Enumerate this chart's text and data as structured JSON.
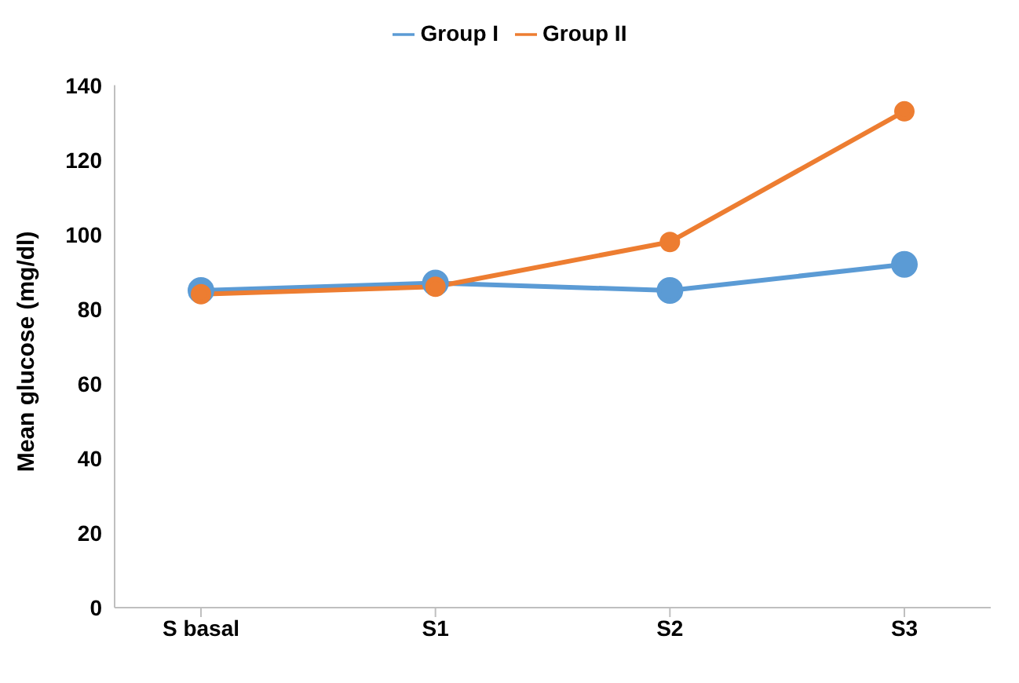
{
  "chart_data": {
    "type": "line",
    "ylabel": "Mean glucose (mg/dl)",
    "categories": [
      "S basal",
      "S1",
      "S2",
      "S3"
    ],
    "series": [
      {
        "name": "Group I",
        "color": "#5b9bd5",
        "values": [
          85,
          87,
          85,
          92
        ]
      },
      {
        "name": "Group II",
        "color": "#ed7d31",
        "values": [
          84,
          86,
          98,
          133
        ]
      }
    ],
    "ylim": [
      0,
      140
    ],
    "yticks": [
      0,
      20,
      40,
      60,
      80,
      100,
      120,
      140
    ],
    "grid": false,
    "legend": "top",
    "marker": "circle"
  }
}
